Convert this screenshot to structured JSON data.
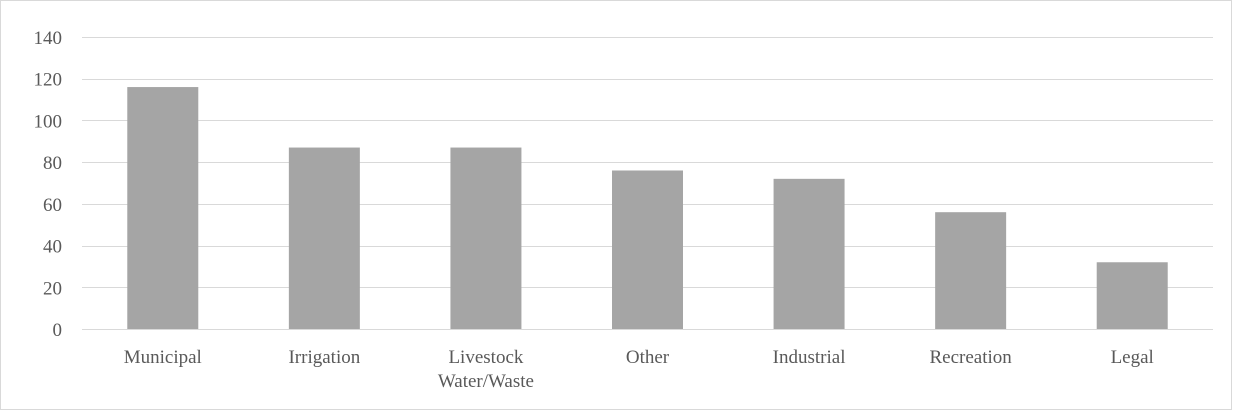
{
  "chart_data": {
    "type": "bar",
    "categories": [
      "Municipal",
      "Irrigation",
      "Livestock Water/Waste",
      "Other",
      "Industrial",
      "Recreation",
      "Legal"
    ],
    "category_lines": [
      [
        "Municipal"
      ],
      [
        "Irrigation"
      ],
      [
        "Livestock",
        "Water/Waste"
      ],
      [
        "Other"
      ],
      [
        "Industrial"
      ],
      [
        "Recreation"
      ],
      [
        "Legal"
      ]
    ],
    "values": [
      116,
      87,
      87,
      76,
      72,
      56,
      32
    ],
    "yticks": [
      "0",
      "20",
      "40",
      "60",
      "80",
      "100",
      "120",
      "140"
    ],
    "ylim": [
      0,
      140
    ],
    "title": "",
    "xlabel": "",
    "ylabel": "",
    "grid": true,
    "legend": "none",
    "colors": {
      "bar": "#a5a5a5",
      "grid": "#d9d9d9",
      "text": "#595959",
      "frame": "#d9d9d9"
    }
  }
}
